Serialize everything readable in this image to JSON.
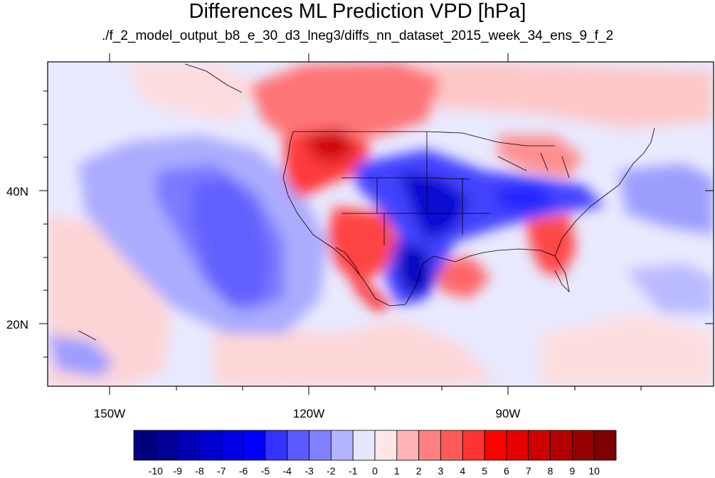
{
  "title": "Differences ML Prediction VPD [hPa]",
  "subtitle": "./f_2_model_output_b8_e_30_d3_lneg3/diffs_nn_dataset_2015_week_34_ens_9_f_2",
  "axes": {
    "lon_labels": [
      "150W",
      "120W",
      "90W"
    ],
    "lat_labels": [
      "40N",
      "20N"
    ]
  },
  "colorbar": {
    "labels": [
      "-10",
      "-9",
      "-8",
      "-7",
      "-6",
      "-5",
      "-4",
      "-3",
      "-2",
      "-1",
      "0",
      "1",
      "2",
      "3",
      "4",
      "5",
      "6",
      "7",
      "8",
      "9",
      "10"
    ],
    "colors": [
      "#00007e",
      "#000096",
      "#0000b3",
      "#0000cd",
      "#0000e6",
      "#0000ff",
      "#3333ff",
      "#5a5aff",
      "#8080ff",
      "#b3b3ff",
      "#e6e6ff",
      "#ffe6e6",
      "#ffb3b3",
      "#ff8080",
      "#ff5a5a",
      "#ff3333",
      "#ff0000",
      "#e60000",
      "#cd0000",
      "#b30000",
      "#960000",
      "#7e0000"
    ]
  }
}
